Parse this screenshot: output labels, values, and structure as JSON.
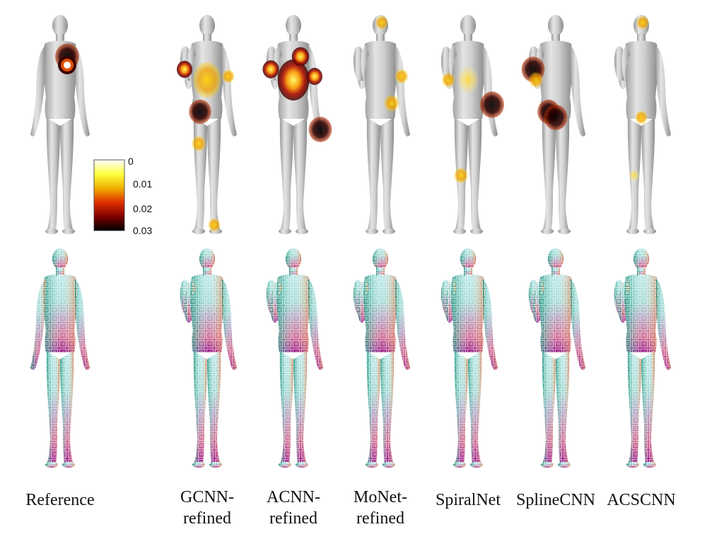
{
  "methods": [
    {
      "id": "reference",
      "label": "Reference",
      "errors": [
        {
          "region": "chest",
          "level": 1.0
        }
      ]
    },
    {
      "id": "gcnn",
      "label": "GCNN-\nrefined",
      "errors": [
        {
          "region": "hip",
          "level": 0.9
        },
        {
          "region": "torso",
          "level": 0.45
        },
        {
          "region": "raised-forearm",
          "level": 0.5
        },
        {
          "region": "left-thigh",
          "level": 0.4
        },
        {
          "region": "right-arm",
          "level": 0.3
        },
        {
          "region": "foot",
          "level": 0.3
        }
      ]
    },
    {
      "id": "acnn",
      "label": "ACNN-\nrefined",
      "errors": [
        {
          "region": "torso",
          "level": 0.55
        },
        {
          "region": "chest",
          "level": 0.6
        },
        {
          "region": "raised-forearm",
          "level": 0.55
        },
        {
          "region": "right-hand",
          "level": 0.95
        },
        {
          "region": "right-arm",
          "level": 0.5
        }
      ]
    },
    {
      "id": "monet",
      "label": "MoNet-\nrefined",
      "errors": [
        {
          "region": "waist",
          "level": 0.45
        },
        {
          "region": "right-arm",
          "level": 0.35
        },
        {
          "region": "head",
          "level": 0.3
        }
      ]
    },
    {
      "id": "spiralnet",
      "label": "SpiralNet",
      "errors": [
        {
          "region": "right-forearm",
          "level": 1.0
        },
        {
          "region": "left-arm",
          "level": 0.35
        },
        {
          "region": "torso",
          "level": 0.25
        },
        {
          "region": "knee",
          "level": 0.4
        }
      ]
    },
    {
      "id": "splinecnn",
      "label": "SplineCNN",
      "errors": [
        {
          "region": "raised-forearm",
          "level": 0.95
        },
        {
          "region": "hip",
          "level": 0.9
        },
        {
          "region": "groin",
          "level": 0.95
        },
        {
          "region": "left-arm",
          "level": 0.4
        }
      ]
    },
    {
      "id": "acscnn",
      "label": "ACSCNN",
      "errors": [
        {
          "region": "head",
          "level": 0.3
        },
        {
          "region": "groin",
          "level": 0.3
        },
        {
          "region": "knee",
          "level": 0.2
        }
      ]
    }
  ],
  "colorbar": {
    "ticks": [
      "0",
      "0.01",
      "0.02",
      "0.03"
    ],
    "colors": [
      "#ffffff",
      "#ffff40",
      "#f0b000",
      "#e03000",
      "#800000",
      "#000000"
    ]
  },
  "colors": {
    "body_gray": "#c6c6c6",
    "texture_top": "#bfe6e8",
    "texture_bottom": "#c0306c",
    "texture_left_arm": "#2a8a7a",
    "texture_right_arm": "#d58a6a"
  }
}
